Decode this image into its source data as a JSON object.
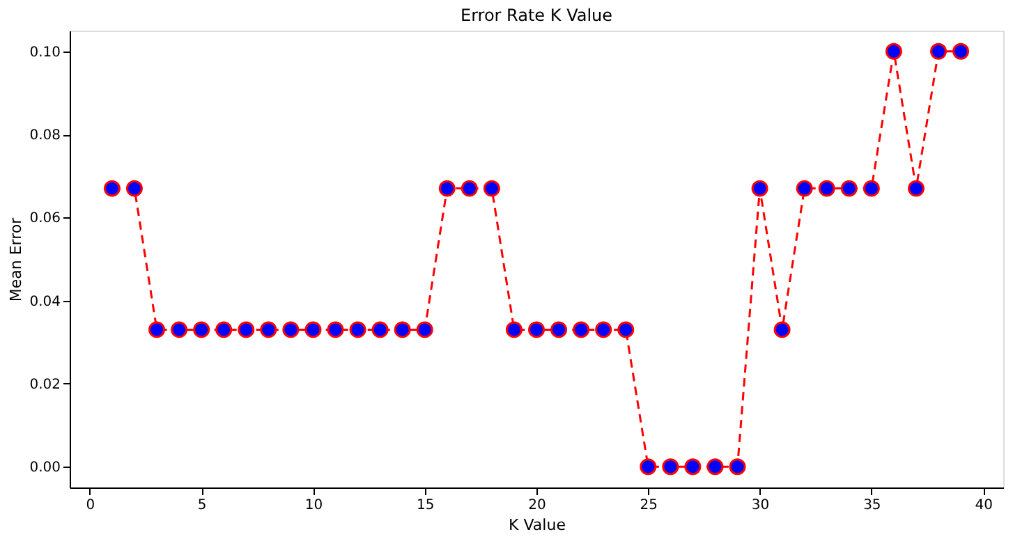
{
  "chart_data": {
    "type": "line",
    "title": "Error Rate K Value",
    "xlabel": "K Value",
    "ylabel": "Mean Error",
    "x": [
      1,
      2,
      3,
      4,
      5,
      6,
      7,
      8,
      9,
      10,
      11,
      12,
      13,
      14,
      15,
      16,
      17,
      18,
      19,
      20,
      21,
      22,
      23,
      24,
      25,
      26,
      27,
      28,
      29,
      30,
      31,
      32,
      33,
      34,
      35,
      36,
      37,
      38,
      39
    ],
    "series": [
      {
        "color": "#ff0000",
        "colors": [
          "#0000ff",
          "#0000ff",
          "#0000ff",
          "#0000ff",
          "#0000ff",
          "#0000ff",
          "#0000ff",
          "#0000ff",
          "#0000ff",
          "#0000ff",
          "#0000ff",
          "#0000ff",
          "#0000ff",
          "#0000ff",
          "#0000ff",
          "#0000ff",
          "#0000ff",
          "#0000ff",
          "#0000ff",
          "#0000ff",
          "#0000ff",
          "#0000ff",
          "#0000ff",
          "#0000ff",
          "#0000ff",
          "#0000ff",
          "#0000ff",
          "#0000ff",
          "#0000ff",
          "#0000ff",
          "#0000ff",
          "#0000ff",
          "#0000ff",
          "#0000ff",
          "#0000ff",
          "#0000ff",
          "#0000ff",
          "#0000ff",
          "#0000ff"
        ],
        "values": [
          0.067,
          0.067,
          0.033,
          0.033,
          0.033,
          0.033,
          0.033,
          0.033,
          0.033,
          0.033,
          0.033,
          0.033,
          0.033,
          0.033,
          0.033,
          0.067,
          0.067,
          0.067,
          0.033,
          0.033,
          0.033,
          0.033,
          0.033,
          0.033,
          0,
          0,
          0,
          0,
          0,
          0.067,
          0.033,
          0.067,
          0.067,
          0.067,
          0.067,
          0.1,
          0.067,
          0.1,
          0.1
        ]
      }
    ],
    "xlim": [
      -0.9,
      40.9
    ],
    "xticks": [
      0,
      5,
      10,
      15,
      20,
      25,
      30,
      35,
      40
    ],
    "ylim": [
      -0.005,
      0.105
    ],
    "yticks": [
      {
        "value": 0,
        "label": "0.00"
      },
      {
        "value": 0.02,
        "label": "0.02"
      },
      {
        "value": 0.04,
        "label": "0.04"
      },
      {
        "value": 0.06,
        "label": "0.06"
      },
      {
        "value": 0.08,
        "label": "0.08"
      },
      {
        "value": 0.1,
        "label": "0.10"
      }
    ],
    "grid": false,
    "marker": "circle",
    "line_style": "dashed"
  }
}
